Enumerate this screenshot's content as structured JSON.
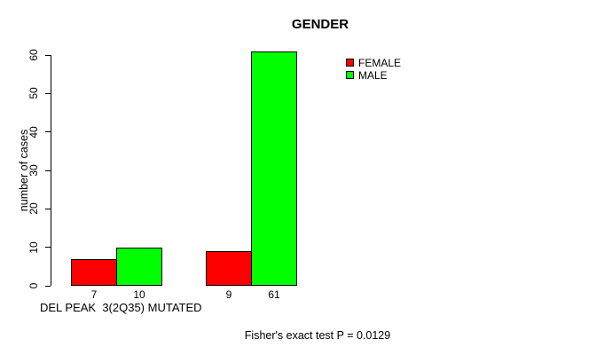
{
  "chart_data": {
    "type": "bar",
    "title": "GENDER",
    "ylabel": "number of cases",
    "xlabel": "DEL PEAK  3(2Q35) MUTATED",
    "annotation": "Fisher's exact test P = 0.0129",
    "ylim": [
      0,
      61
    ],
    "yticks": [
      0,
      10,
      20,
      30,
      40,
      50,
      60
    ],
    "grid": false,
    "legend_position": "top-right",
    "series": [
      {
        "name": "FEMALE",
        "color": "#ff0000",
        "values": [
          7,
          9
        ]
      },
      {
        "name": "MALE",
        "color": "#00ff00",
        "values": [
          10,
          61
        ]
      }
    ],
    "bar_value_labels": [
      [
        "7",
        "10"
      ],
      [
        "9",
        "61"
      ]
    ]
  }
}
